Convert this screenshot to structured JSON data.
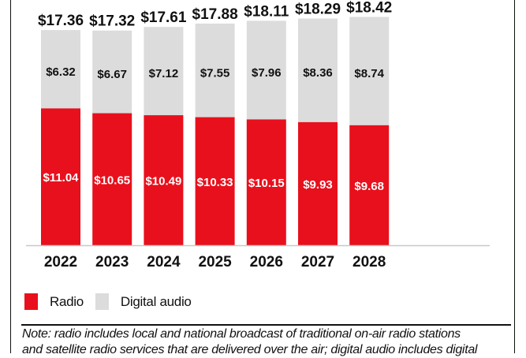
{
  "chart_data": {
    "type": "bar",
    "stacked": true,
    "title": "",
    "xlabel": "",
    "ylabel": "",
    "categories": [
      "2022",
      "2023",
      "2024",
      "2025",
      "2026",
      "2027",
      "2028"
    ],
    "series": [
      {
        "name": "Radio",
        "color": "#e8101c",
        "values": [
          11.04,
          10.65,
          10.49,
          10.33,
          10.15,
          9.93,
          9.68
        ],
        "labels": [
          "$11.04",
          "$10.65",
          "$10.49",
          "$10.33",
          "$10.15",
          "$9.93",
          "$9.68"
        ]
      },
      {
        "name": "Digital audio",
        "color": "#dcdcdc",
        "values": [
          6.32,
          6.67,
          7.12,
          7.55,
          7.96,
          8.36,
          8.74
        ],
        "labels": [
          "$6.32",
          "$6.67",
          "$7.12",
          "$7.55",
          "$7.96",
          "$8.36",
          "$8.74"
        ]
      }
    ],
    "totals": [
      17.36,
      17.32,
      17.61,
      17.88,
      18.11,
      18.29,
      18.42
    ],
    "total_labels": [
      "$17.36",
      "$17.32",
      "$17.61",
      "$17.88",
      "$18.11",
      "$18.29",
      "$18.42"
    ],
    "ylim": [
      0,
      18.42
    ],
    "grid": false,
    "legend_position": "bottom-left"
  },
  "legend": {
    "items": [
      {
        "label": "Radio",
        "color": "#e8101c"
      },
      {
        "label": "Digital audio",
        "color": "#dcdcdc"
      }
    ]
  },
  "note": {
    "line1": "Note: radio includes local and national broadcast of traditional on-air radio stations",
    "line2": "and satellite radio services that are delivered over the air; digital audio includes digital"
  }
}
